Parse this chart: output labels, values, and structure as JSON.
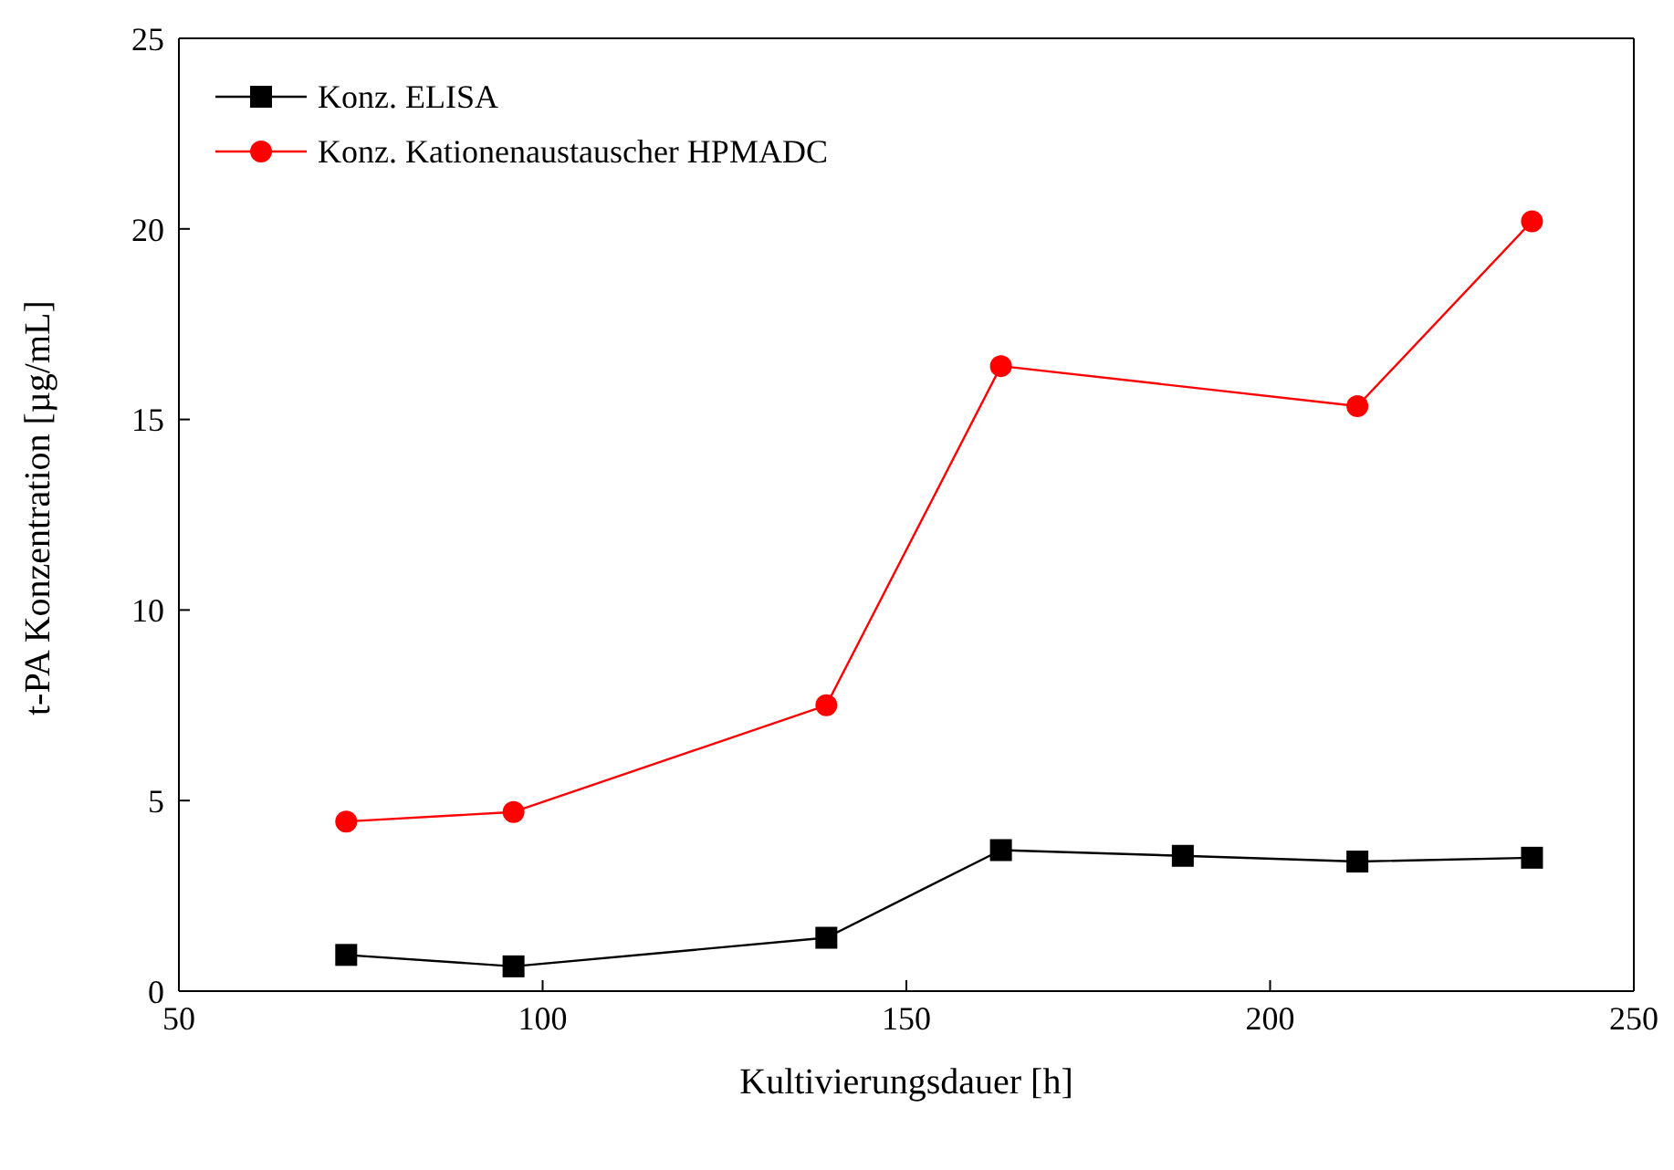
{
  "chart_data": {
    "type": "line",
    "xlabel": "Kultivierungsdauer [h]",
    "ylabel": "t-PA Konzentration [µg/mL]",
    "xlim": [
      50,
      250
    ],
    "xticks": [
      50,
      100,
      150,
      200,
      250
    ],
    "ylim": [
      0,
      25
    ],
    "yticks": [
      0,
      5,
      10,
      15,
      20,
      25
    ],
    "grid": false,
    "legend": "top left",
    "series": [
      {
        "name": "Konz. ELISA",
        "color": "#000000",
        "marker": "square",
        "x": [
          73,
          96,
          139,
          163,
          188,
          212,
          236
        ],
        "values": [
          0.95,
          0.65,
          1.4,
          3.7,
          3.55,
          3.4,
          3.5
        ]
      },
      {
        "name": "Konz. Kationenaustauscher HPMADC",
        "color": "#ff0000",
        "marker": "circle",
        "x": [
          73,
          96,
          139,
          163,
          212,
          236
        ],
        "values": [
          4.45,
          4.7,
          7.5,
          16.4,
          15.35,
          20.2
        ]
      }
    ]
  }
}
